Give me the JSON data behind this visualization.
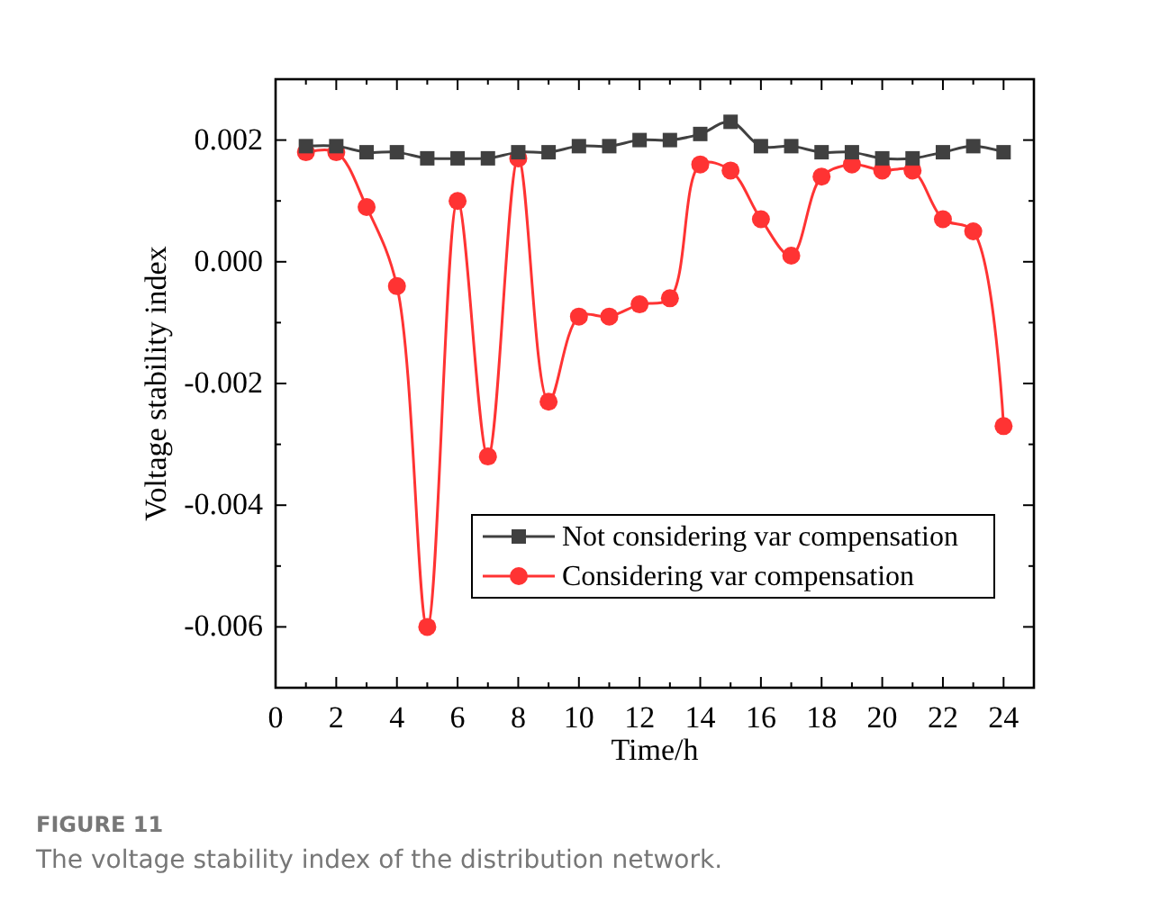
{
  "chart_data": {
    "type": "line",
    "xlabel": "Time/h",
    "ylabel": "Voltage stability index",
    "x": [
      1,
      2,
      3,
      4,
      5,
      6,
      7,
      8,
      9,
      10,
      11,
      12,
      13,
      14,
      15,
      16,
      17,
      18,
      19,
      20,
      21,
      22,
      23,
      24
    ],
    "series": [
      {
        "name": "Not considering var compensation",
        "color": "#404040",
        "marker": "square",
        "values": [
          0.0019,
          0.0019,
          0.0018,
          0.0018,
          0.0017,
          0.0017,
          0.0017,
          0.0018,
          0.0018,
          0.0019,
          0.0019,
          0.002,
          0.002,
          0.0021,
          0.0023,
          0.0019,
          0.0019,
          0.0018,
          0.0018,
          0.0017,
          0.0017,
          0.0018,
          0.0019,
          0.0018
        ]
      },
      {
        "name": "Considering var compensation",
        "color": "#ff3333",
        "marker": "circle",
        "values": [
          0.0018,
          0.0018,
          0.0009,
          -0.0004,
          -0.006,
          0.001,
          -0.0032,
          0.0017,
          -0.0023,
          -0.0009,
          -0.0009,
          -0.0007,
          -0.0006,
          0.0016,
          0.0015,
          0.0007,
          0.0001,
          0.0014,
          0.0016,
          0.0015,
          0.0015,
          0.0007,
          0.0005,
          -0.0027
        ]
      }
    ],
    "xlim": [
      0,
      25
    ],
    "xticks": [
      0,
      2,
      4,
      6,
      8,
      10,
      12,
      14,
      16,
      18,
      20,
      22,
      24
    ],
    "ylim": [
      -0.007,
      0.003
    ],
    "yticks": [
      {
        "value": -0.007,
        "label": null
      },
      {
        "value": -0.006,
        "label": "-0.006"
      },
      {
        "value": -0.005,
        "label": null
      },
      {
        "value": -0.004,
        "label": "-0.004"
      },
      {
        "value": -0.003,
        "label": null
      },
      {
        "value": -0.002,
        "label": "-0.002"
      },
      {
        "value": -0.001,
        "label": null
      },
      {
        "value": 0,
        "label": "0.000"
      },
      {
        "value": 0.001,
        "label": null
      },
      {
        "value": 0.002,
        "label": "0.002"
      },
      {
        "value": 0.003,
        "label": null
      }
    ],
    "grid": false,
    "legend": "bottom right",
    "line_style": "solid",
    "annotations": [
      "FIGURE 11",
      "The voltage stability index of the distribution network."
    ]
  }
}
